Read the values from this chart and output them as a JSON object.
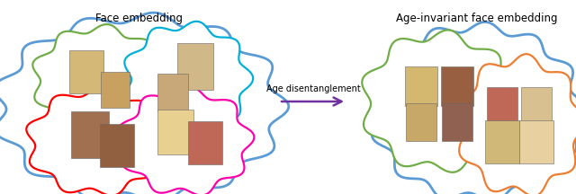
{
  "title_left": "Face embedding",
  "title_right": "Age-invariant face embedding",
  "arrow_label": "Age disentanglement",
  "arrow_color": "#7030a0",
  "bg_color": "#ffffff",
  "left_big_cloud_color": "#5b9bd5",
  "right_big_cloud_color": "#5b9bd5",
  "figsize": [
    6.4,
    2.16
  ],
  "dpi": 100
}
